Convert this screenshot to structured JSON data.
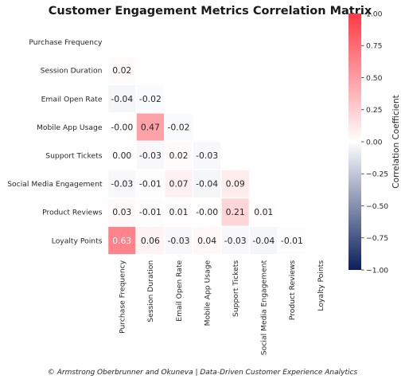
{
  "chart_data": {
    "type": "heatmap",
    "title": "Customer Engagement Metrics Correlation Matrix",
    "variables": [
      "Purchase Frequency",
      "Session Duration",
      "Email Open Rate",
      "Mobile App Usage",
      "Support Tickets",
      "Social Media Engagement",
      "Product Reviews",
      "Loyalty Points"
    ],
    "mask": "upper-triangle-including-diagonal",
    "lower_triangle": [
      [],
      [
        0.02
      ],
      [
        -0.04,
        -0.02
      ],
      [
        -0.0,
        0.47,
        -0.02
      ],
      [
        0.0,
        -0.03,
        0.02,
        -0.03
      ],
      [
        -0.03,
        -0.01,
        0.07,
        -0.04,
        0.09
      ],
      [
        0.03,
        -0.01,
        0.01,
        -0.0,
        0.21,
        0.01
      ],
      [
        0.63,
        0.06,
        -0.03,
        0.04,
        -0.03,
        -0.04,
        -0.01
      ]
    ],
    "cell_labels": [
      [],
      [
        "0.02"
      ],
      [
        "-0.04",
        "-0.02"
      ],
      [
        "-0.00",
        "0.47",
        "-0.02"
      ],
      [
        "0.00",
        "-0.03",
        "0.02",
        "-0.03"
      ],
      [
        "-0.03",
        "-0.01",
        "0.07",
        "-0.04",
        "0.09"
      ],
      [
        "0.03",
        "-0.01",
        "0.01",
        "-0.00",
        "0.21",
        "0.01"
      ],
      [
        "0.63",
        "0.06",
        "-0.03",
        "0.04",
        "-0.03",
        "-0.04",
        "-0.01"
      ]
    ],
    "colorbar": {
      "label": "Correlation Coefficient",
      "range": [
        -1.0,
        1.0
      ],
      "ticks": [
        1.0,
        0.75,
        0.5,
        0.25,
        0.0,
        -0.25,
        -0.5,
        -0.75,
        -1.0
      ],
      "tick_labels": [
        "1.00",
        "0.75",
        "0.50",
        "0.25",
        "0.00",
        "−0.25",
        "−0.50",
        "−0.75",
        "−1.00"
      ],
      "colors": {
        "negative": "#0b1f5c",
        "zero": "#ffffff",
        "positive": "#ff3a46"
      }
    }
  },
  "footer": "© Armstrong Oberbrunner and Okuneva | Data-Driven Customer Experience Analytics"
}
